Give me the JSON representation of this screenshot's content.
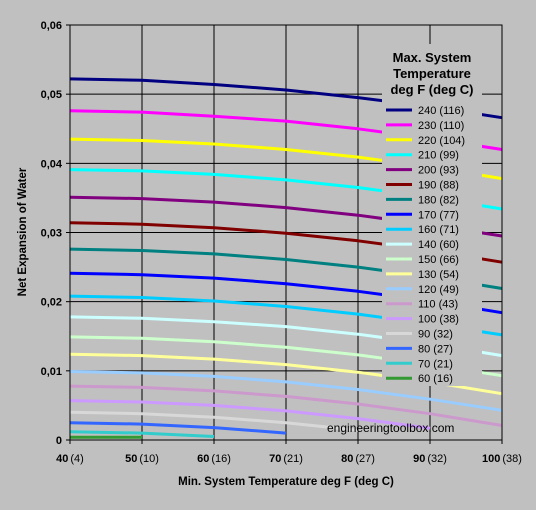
{
  "chart_data": {
    "type": "line",
    "xlabel": "Min. System Temperature deg F (deg C)",
    "ylabel": "Net Expansion of Water",
    "xlim": [
      40,
      100
    ],
    "ylim": [
      0,
      0.06
    ],
    "grid": true,
    "x_ticks": [
      {
        "value": 40,
        "label": "40",
        "sub": "(4)"
      },
      {
        "value": 50,
        "label": "50",
        "sub": "(10)"
      },
      {
        "value": 60,
        "label": "60",
        "sub": "(16)"
      },
      {
        "value": 70,
        "label": "70",
        "sub": "(21)"
      },
      {
        "value": 80,
        "label": "80",
        "sub": "(27)"
      },
      {
        "value": 90,
        "label": "90",
        "sub": "(32)"
      },
      {
        "value": 100,
        "label": "100",
        "sub": "(38)"
      }
    ],
    "y_ticks": [
      {
        "value": 0,
        "label": "0"
      },
      {
        "value": 0.01,
        "label": "0,01"
      },
      {
        "value": 0.02,
        "label": "0,02"
      },
      {
        "value": 0.03,
        "label": "0,03"
      },
      {
        "value": 0.04,
        "label": "0,04"
      },
      {
        "value": 0.05,
        "label": "0,05"
      },
      {
        "value": 0.06,
        "label": "0,06"
      }
    ],
    "legend": {
      "title_lines": [
        "Max. System",
        "Temperature",
        "deg F (deg C)"
      ],
      "placement": "right"
    },
    "series": [
      {
        "name": "240 (116)",
        "color": "#000080",
        "x": [
          40,
          50,
          60,
          70,
          80,
          90,
          100
        ],
        "y": [
          0.0522,
          0.052,
          0.0514,
          0.0506,
          0.0495,
          0.0482,
          0.0466
        ]
      },
      {
        "name": "230 (110)",
        "color": "#ff00ff",
        "x": [
          40,
          50,
          60,
          70,
          80,
          90,
          100
        ],
        "y": [
          0.0476,
          0.0474,
          0.0468,
          0.0461,
          0.045,
          0.0436,
          0.042
        ]
      },
      {
        "name": "220 (104)",
        "color": "#ffff00",
        "x": [
          40,
          50,
          60,
          70,
          80,
          90,
          100
        ],
        "y": [
          0.0435,
          0.0433,
          0.0428,
          0.042,
          0.0409,
          0.0395,
          0.0378
        ]
      },
      {
        "name": "210 (99)",
        "color": "#00ffff",
        "x": [
          40,
          50,
          60,
          70,
          80,
          90,
          100
        ],
        "y": [
          0.0391,
          0.0389,
          0.0384,
          0.0376,
          0.0365,
          0.0351,
          0.0334
        ]
      },
      {
        "name": "200 (93)",
        "color": "#800080",
        "x": [
          40,
          50,
          60,
          70,
          80,
          90,
          100
        ],
        "y": [
          0.0351,
          0.0349,
          0.0344,
          0.0336,
          0.0325,
          0.0311,
          0.0295
        ]
      },
      {
        "name": "190 (88)",
        "color": "#800000",
        "x": [
          40,
          50,
          60,
          70,
          80,
          90,
          100
        ],
        "y": [
          0.0314,
          0.0312,
          0.0307,
          0.0299,
          0.0288,
          0.0274,
          0.0257
        ]
      },
      {
        "name": "180 (82)",
        "color": "#008080",
        "x": [
          40,
          50,
          60,
          70,
          80,
          90,
          100
        ],
        "y": [
          0.0276,
          0.0274,
          0.0269,
          0.0261,
          0.025,
          0.0236,
          0.0219
        ]
      },
      {
        "name": "170 (77)",
        "color": "#0000ff",
        "x": [
          40,
          50,
          60,
          70,
          80,
          90,
          100
        ],
        "y": [
          0.0241,
          0.0239,
          0.0234,
          0.0226,
          0.0215,
          0.0201,
          0.0184
        ]
      },
      {
        "name": "160 (71)",
        "color": "#00ccff",
        "x": [
          40,
          50,
          60,
          70,
          80,
          90,
          100
        ],
        "y": [
          0.0208,
          0.0206,
          0.0201,
          0.0193,
          0.0182,
          0.0168,
          0.0152
        ]
      },
      {
        "name": "140 (60)",
        "color": "#ccffff",
        "x": [
          40,
          50,
          60,
          70,
          80,
          90,
          100
        ],
        "y": [
          0.0178,
          0.0176,
          0.0171,
          0.0164,
          0.0153,
          0.0139,
          0.0122
        ]
      },
      {
        "name": "150 (66)",
        "color": "#ccffcc",
        "x": [
          40,
          50,
          60,
          70,
          80,
          90,
          100
        ],
        "y": [
          0.0149,
          0.0147,
          0.0142,
          0.0134,
          0.0123,
          0.0109,
          0.0093
        ]
      },
      {
        "name": "130 (54)",
        "color": "#ffff99",
        "x": [
          40,
          50,
          60,
          70,
          80,
          90,
          100
        ],
        "y": [
          0.0124,
          0.0122,
          0.0117,
          0.0109,
          0.0098,
          0.0084,
          0.0067
        ]
      },
      {
        "name": "120 (49)",
        "color": "#99ccff",
        "x": [
          40,
          50,
          60,
          70,
          80,
          90,
          100
        ],
        "y": [
          0.0099,
          0.0097,
          0.0092,
          0.0084,
          0.0073,
          0.0059,
          0.0043
        ]
      },
      {
        "name": "110 (43)",
        "color": "#cc99cc",
        "x": [
          40,
          50,
          60,
          70,
          80,
          90,
          100
        ],
        "y": [
          0.0078,
          0.0076,
          0.0071,
          0.0063,
          0.0052,
          0.0038,
          0.0021
        ]
      },
      {
        "name": "100 (38)",
        "color": "#cc99ff",
        "x": [
          40,
          50,
          60,
          70,
          80,
          90
        ],
        "y": [
          0.0057,
          0.0055,
          0.005,
          0.0042,
          0.0031,
          0.0017
        ]
      },
      {
        "name": "90 (32)",
        "color": "#d8d8d8",
        "x": [
          40,
          50,
          60,
          70,
          80
        ],
        "y": [
          0.004,
          0.0038,
          0.0033,
          0.0025,
          0.0014
        ]
      },
      {
        "name": "80 (27)",
        "color": "#3366ff",
        "x": [
          40,
          50,
          60,
          70
        ],
        "y": [
          0.0025,
          0.0023,
          0.0018,
          0.001
        ]
      },
      {
        "name": "70 (21)",
        "color": "#33cccc",
        "x": [
          40,
          50,
          60
        ],
        "y": [
          0.0012,
          0.001,
          0.0005
        ]
      },
      {
        "name": "60 (16)",
        "color": "#339933",
        "x": [
          40,
          50
        ],
        "y": [
          0.0004,
          0.0004
        ]
      }
    ]
  },
  "watermark": "engineeringtoolbox.com"
}
